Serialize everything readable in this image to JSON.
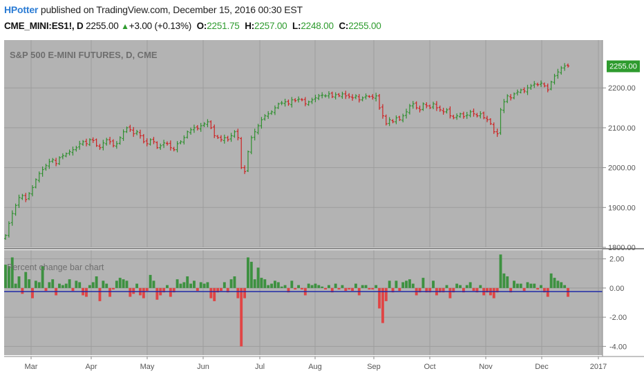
{
  "header": {
    "author": "HPotter",
    "published": "published on TradingView.com, December 15, 2016 00:30 EST",
    "symbol": "CME_MINI:ES1!, D",
    "last": "2255.00",
    "change_arrow": "▲",
    "change": "+3.00 (+0.13%)",
    "o_label": "O:",
    "o_value": "2251.75",
    "h_label": "H:",
    "h_value": "2257.00",
    "l_label": "L:",
    "l_value": "2248.00",
    "c_label": "C:",
    "c_value": "2255.00"
  },
  "chart_data": [
    {
      "type": "ohlc",
      "title": "S&P 500 E-MINI FUTURES, D, CME",
      "last_price_label": "2255.00",
      "ylim": [
        1800,
        2320
      ],
      "y_ticks": [
        "2200.00",
        "2100.00",
        "2000.00",
        "1900.00",
        "1800.00"
      ],
      "y_tick_values": [
        2200,
        2100,
        2000,
        1900,
        1800
      ],
      "x_ticks": [
        "Mar",
        "Apr",
        "May",
        "Jun",
        "Jul",
        "Aug",
        "Sep",
        "Oct",
        "Nov",
        "Dec",
        "2017"
      ],
      "close_values": [
        1830,
        1860,
        1885,
        1905,
        1925,
        1930,
        1920,
        1935,
        1950,
        1970,
        1985,
        1995,
        2005,
        2015,
        2020,
        2010,
        2025,
        2030,
        2035,
        2040,
        2045,
        2050,
        2060,
        2065,
        2060,
        2070,
        2068,
        2055,
        2050,
        2062,
        2070,
        2065,
        2055,
        2060,
        2075,
        2090,
        2100,
        2095,
        2085,
        2090,
        2080,
        2065,
        2060,
        2070,
        2065,
        2050,
        2055,
        2062,
        2060,
        2050,
        2045,
        2060,
        2065,
        2075,
        2090,
        2095,
        2100,
        2098,
        2105,
        2110,
        2115,
        2100,
        2080,
        2075,
        2070,
        2075,
        2070,
        2080,
        2090,
        2075,
        2000,
        1990,
        2040,
        2075,
        2090,
        2105,
        2120,
        2130,
        2135,
        2140,
        2150,
        2160,
        2162,
        2165,
        2160,
        2170,
        2168,
        2172,
        2170,
        2160,
        2165,
        2170,
        2175,
        2180,
        2182,
        2180,
        2185,
        2178,
        2183,
        2180,
        2185,
        2180,
        2178,
        2175,
        2180,
        2170,
        2175,
        2180,
        2178,
        2176,
        2180,
        2150,
        2130,
        2110,
        2120,
        2115,
        2125,
        2120,
        2130,
        2140,
        2155,
        2160,
        2150,
        2145,
        2160,
        2155,
        2150,
        2160,
        2150,
        2145,
        2140,
        2145,
        2130,
        2125,
        2130,
        2135,
        2128,
        2132,
        2140,
        2135,
        2130,
        2135,
        2125,
        2120,
        2110,
        2090,
        2085,
        2145,
        2165,
        2180,
        2175,
        2185,
        2190,
        2195,
        2192,
        2200,
        2205,
        2210,
        2208,
        2212,
        2205,
        2195,
        2215,
        2230,
        2240,
        2250,
        2255,
        2255
      ],
      "change_percent_series": {
        "name": "Percent change bar chart",
        "ylim": [
          -4.6,
          2.6
        ],
        "y_ticks": [
          "2.00",
          "0.00",
          "-2.00",
          "-4.00"
        ],
        "y_tick_values": [
          2,
          0,
          -2,
          -4
        ],
        "values": [
          1.6,
          1.5,
          2.1,
          0.3,
          0.8,
          -0.4,
          1.1,
          0.6,
          -0.7,
          0.5,
          0.4,
          1.5,
          -0.2,
          0.4,
          0.6,
          -0.5,
          0.3,
          0.2,
          0.3,
          0.6,
          -0.2,
          0.5,
          0.4,
          -0.5,
          -0.6,
          0.2,
          0.4,
          0.8,
          -0.9,
          0.5,
          0.3,
          -0.6,
          -0.1,
          0.5,
          0.7,
          0.6,
          0.5,
          -0.6,
          -0.4,
          0.3,
          -0.5,
          -0.7,
          -0.2,
          0.9,
          0.5,
          -0.8,
          -0.5,
          -0.3,
          0.2,
          -0.6,
          -0.3,
          0.6,
          0.3,
          0.4,
          0.8,
          0.3,
          0.5,
          -0.2,
          0.4,
          0.3,
          0.4,
          -0.7,
          -0.9,
          -0.3,
          -0.2,
          0.4,
          -0.3,
          0.6,
          0.8,
          -0.7,
          -4.0,
          -0.7,
          2.1,
          1.8,
          0.6,
          1.4,
          0.7,
          0.6,
          0.2,
          0.3,
          0.5,
          0.4,
          0.1,
          0.2,
          -0.3,
          0.5,
          -0.1,
          0.2,
          -0.1,
          -0.5,
          0.3,
          0.2,
          0.3,
          0.2,
          0.1,
          -0.1,
          0.2,
          -0.3,
          0.3,
          -0.1,
          0.2,
          -0.2,
          -0.1,
          -0.2,
          0.3,
          -0.5,
          0.2,
          0.2,
          -0.1,
          -0.1,
          0.2,
          -1.4,
          -2.4,
          -0.9,
          0.5,
          -0.3,
          0.5,
          -0.2,
          0.4,
          0.5,
          0.6,
          0.3,
          -0.5,
          -0.3,
          0.7,
          -0.3,
          -0.3,
          0.5,
          -0.5,
          -0.3,
          -0.3,
          0.2,
          -0.7,
          -0.3,
          0.3,
          0.2,
          -0.3,
          0.2,
          0.4,
          -0.2,
          -0.3,
          0.2,
          -0.5,
          -0.3,
          -0.5,
          -0.7,
          -0.3,
          2.3,
          1.0,
          0.8,
          -0.3,
          0.5,
          0.3,
          0.3,
          -0.2,
          0.4,
          0.3,
          0.3,
          -0.1,
          0.2,
          -0.3,
          -0.6,
          1.0,
          0.7,
          0.5,
          0.4,
          0.2,
          -0.6
        ]
      }
    }
  ]
}
